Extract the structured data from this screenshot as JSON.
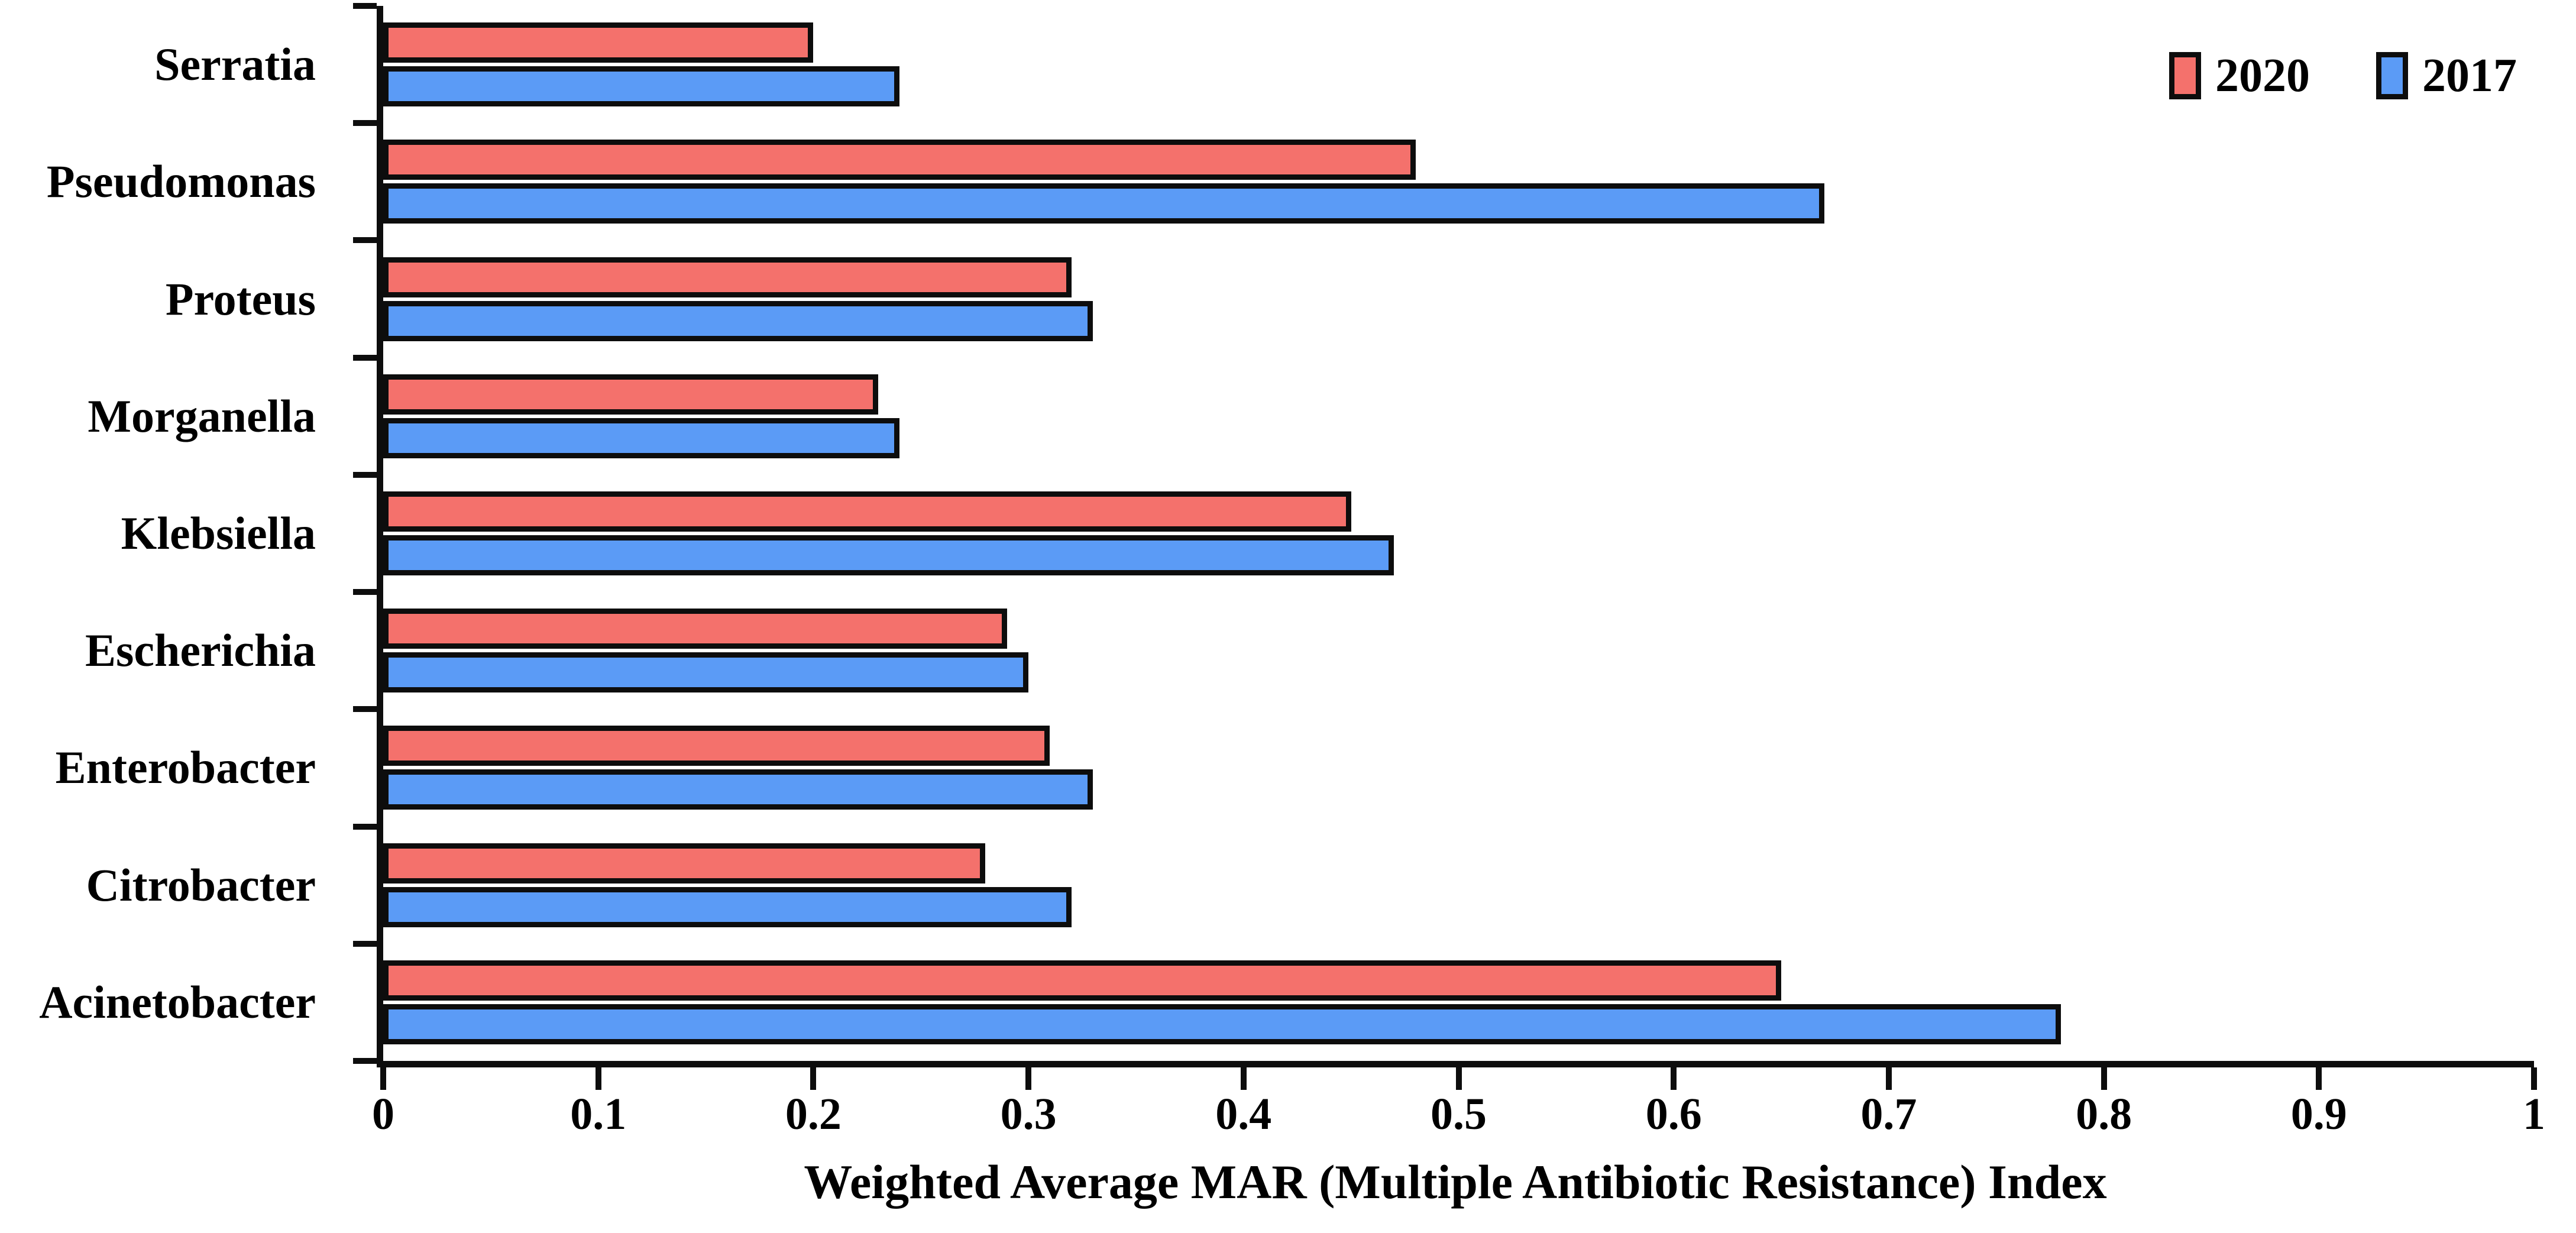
{
  "chart_data": {
    "type": "bar",
    "orientation": "horizontal",
    "title": "",
    "xlabel": "Weighted Average MAR (Multiple Antibiotic Resistance) Index",
    "ylabel": "",
    "xlim": [
      0,
      1
    ],
    "x_ticks": [
      "0",
      "0.1",
      "0.2",
      "0.3",
      "0.4",
      "0.5",
      "0.6",
      "0.7",
      "0.8",
      "0.9",
      "1"
    ],
    "grid": false,
    "legend_position": "top-right",
    "categories": [
      "Serratia",
      "Pseudomonas",
      "Proteus",
      "Morganella",
      "Klebsiella",
      "Escherichia",
      "Enterobacter",
      "Citrobacter",
      "Acinetobacter"
    ],
    "series": [
      {
        "name": "2020",
        "color": "#f4716c",
        "values": [
          0.2,
          0.48,
          0.32,
          0.23,
          0.45,
          0.29,
          0.31,
          0.28,
          0.65
        ]
      },
      {
        "name": "2017",
        "color": "#5b9bf6",
        "values": [
          0.24,
          0.67,
          0.33,
          0.24,
          0.47,
          0.3,
          0.33,
          0.32,
          0.78
        ]
      }
    ]
  },
  "legend": {
    "items": [
      {
        "label": "2020",
        "color": "#f4716c"
      },
      {
        "label": "2017",
        "color": "#5b9bf6"
      }
    ]
  },
  "colors": {
    "background": "#ffffff",
    "axis": "#0d0d0d",
    "bar_outline": "#0d0d0d",
    "text": "#000000"
  }
}
